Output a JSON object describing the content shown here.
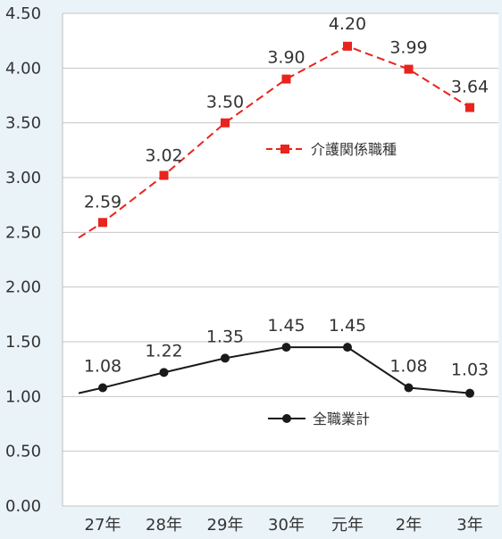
{
  "chart_data": {
    "type": "line",
    "categories": [
      "27年",
      "28年",
      "29年",
      "30年",
      "元年",
      "2年",
      "3年"
    ],
    "ylim": [
      0,
      4.5
    ],
    "yticks": [
      "0.00",
      "0.50",
      "1.00",
      "1.50",
      "2.00",
      "2.50",
      "3.00",
      "3.50",
      "4.00",
      "4.50"
    ],
    "grid": true,
    "series": [
      {
        "name": "介護関係職種",
        "values": [
          2.59,
          3.02,
          3.5,
          3.9,
          4.2,
          3.99,
          3.64
        ],
        "labels": [
          "2.59",
          "3.02",
          "3.50",
          "3.90",
          "4.20",
          "3.99",
          "3.64"
        ],
        "color": "#e8241c",
        "line_style": "dashed",
        "marker": "square"
      },
      {
        "name": "全職業計",
        "values": [
          1.08,
          1.22,
          1.35,
          1.45,
          1.45,
          1.08,
          1.03
        ],
        "labels": [
          "1.08",
          "1.22",
          "1.35",
          "1.45",
          "1.45",
          "1.08",
          "1.03"
        ],
        "color": "#1a1a1a",
        "line_style": "solid",
        "marker": "circle"
      }
    ]
  }
}
